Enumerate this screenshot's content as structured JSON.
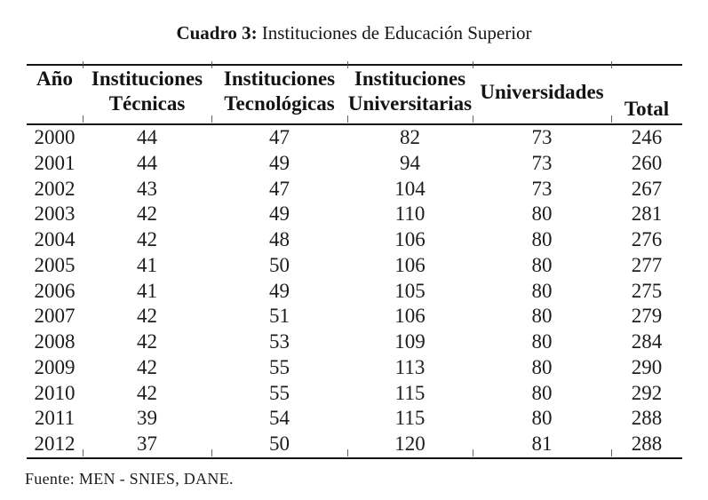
{
  "title": {
    "bold": "Cuadro 3:",
    "rest": "Instituciones de Educación Superior"
  },
  "table": {
    "columns": [
      {
        "id": "ano",
        "lines": [
          "Año"
        ]
      },
      {
        "id": "instituciones-tecnicas",
        "lines": [
          "Instituciones",
          "Técnicas"
        ]
      },
      {
        "id": "instituciones-tecnologicas",
        "lines": [
          "Instituciones",
          "Tecnológicas"
        ]
      },
      {
        "id": "instituciones-universitarias",
        "lines": [
          "Instituciones",
          "Universitarias"
        ]
      },
      {
        "id": "universidades",
        "lines": [
          "Universidades"
        ]
      },
      {
        "id": "total",
        "lines": [
          "Total"
        ]
      }
    ],
    "rows": [
      [
        "2000",
        "44",
        "47",
        "82",
        "73",
        "246"
      ],
      [
        "2001",
        "44",
        "49",
        "94",
        "73",
        "260"
      ],
      [
        "2002",
        "43",
        "47",
        "104",
        "73",
        "267"
      ],
      [
        "2003",
        "42",
        "49",
        "110",
        "80",
        "281"
      ],
      [
        "2004",
        "42",
        "48",
        "106",
        "80",
        "276"
      ],
      [
        "2005",
        "41",
        "50",
        "106",
        "80",
        "277"
      ],
      [
        "2006",
        "41",
        "49",
        "105",
        "80",
        "275"
      ],
      [
        "2007",
        "42",
        "51",
        "106",
        "80",
        "279"
      ],
      [
        "2008",
        "42",
        "53",
        "109",
        "80",
        "284"
      ],
      [
        "2009",
        "42",
        "55",
        "113",
        "80",
        "290"
      ],
      [
        "2010",
        "42",
        "55",
        "115",
        "80",
        "292"
      ],
      [
        "2011",
        "39",
        "54",
        "115",
        "80",
        "288"
      ],
      [
        "2012",
        "37",
        "50",
        "120",
        "81",
        "288"
      ]
    ]
  },
  "footer": {
    "source": "Fuente: MEN - SNIES, DANE."
  },
  "colors": {
    "text": "#1c1c1c",
    "rule": "#141414",
    "background": "#ffffff"
  }
}
